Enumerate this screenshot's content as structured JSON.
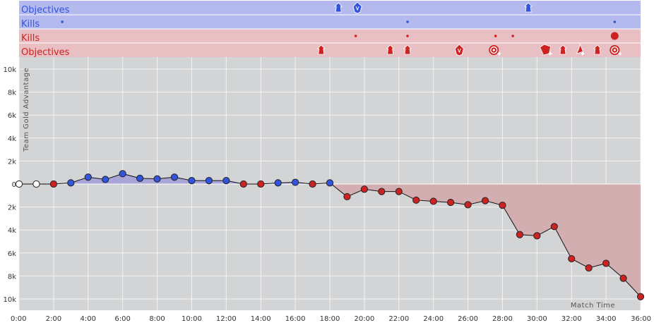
{
  "colors": {
    "blue": "#3355dd",
    "red": "#cc2222",
    "blue_lane": "#b4b9ee",
    "red_lane": "#e8bfc2",
    "plot_bg": "#d3d4d6",
    "grid": "#f2f2f2",
    "blue_fill": "#a7a6d6",
    "red_fill": "#d3aeb0",
    "neutral": "#ffffff"
  },
  "lanes": [
    {
      "label": "Objectives",
      "team": "blue",
      "kind": "objectives"
    },
    {
      "label": "Kills",
      "team": "blue",
      "kind": "kills"
    },
    {
      "label": "Kills",
      "team": "red",
      "kind": "kills"
    },
    {
      "label": "Objectives",
      "team": "red",
      "kind": "objectives"
    }
  ],
  "events": {
    "blue_objectives": [
      {
        "t": 18.5,
        "icon": "tower-icon"
      },
      {
        "t": 19.6,
        "icon": "dragon-icon"
      },
      {
        "t": 29.5,
        "icon": "tower-icon"
      }
    ],
    "blue_kills": [
      {
        "t": 2.5,
        "count": 1
      },
      {
        "t": 22.5,
        "count": 1
      },
      {
        "t": 34.5,
        "count": 1
      }
    ],
    "red_kills": [
      {
        "t": 19.5,
        "count": 1
      },
      {
        "t": 22.5,
        "count": 1
      },
      {
        "t": 27.6,
        "count": 1
      },
      {
        "t": 28.6,
        "count": 1
      },
      {
        "t": 34.5,
        "count": 4
      }
    ],
    "red_objectives": [
      {
        "t": 17.5,
        "icon": "tower-icon"
      },
      {
        "t": 21.5,
        "icon": "tower-icon"
      },
      {
        "t": 22.5,
        "icon": "tower-icon"
      },
      {
        "t": 25.5,
        "icon": "dragon-icon"
      },
      {
        "t": 27.5,
        "icon": "herald-icon"
      },
      {
        "t": 30.5,
        "icon": "baron-icon"
      },
      {
        "t": 31.5,
        "icon": "tower-icon"
      },
      {
        "t": 32.5,
        "icon": "inhibitor-icon"
      },
      {
        "t": 33.5,
        "icon": "tower-icon"
      },
      {
        "t": 34.5,
        "icon": "herald-icon"
      }
    ]
  },
  "chart_data": {
    "type": "line",
    "ylabel": "Team Gold Advantage",
    "xlabel": "Match Time",
    "xlim": [
      0,
      36
    ],
    "ylim": [
      -10000,
      10000
    ],
    "x_ticks": [
      "0:00",
      "2:00",
      "4:00",
      "6:00",
      "8:00",
      "10:00",
      "12:00",
      "14:00",
      "16:00",
      "18:00",
      "20:00",
      "22:00",
      "24:00",
      "26:00",
      "28:00",
      "30:00",
      "32:00",
      "34:00",
      "36:00"
    ],
    "y_ticks": [
      {
        "v": 10000,
        "label": "10k"
      },
      {
        "v": 8000,
        "label": "8k"
      },
      {
        "v": 6000,
        "label": "6k"
      },
      {
        "v": 4000,
        "label": "4k"
      },
      {
        "v": 2000,
        "label": "2k"
      },
      {
        "v": 0,
        "label": "0"
      },
      {
        "v": -2000,
        "label": "2k"
      },
      {
        "v": -4000,
        "label": "4k"
      },
      {
        "v": -6000,
        "label": "6k"
      },
      {
        "v": -8000,
        "label": "8k"
      },
      {
        "v": -10000,
        "label": "10k"
      }
    ],
    "grid": true,
    "series": [
      {
        "x": [
          0,
          1,
          2,
          3,
          4,
          5,
          6,
          7,
          8,
          9,
          10,
          11,
          12,
          13,
          14,
          15,
          16,
          17,
          18,
          19,
          20,
          21,
          22,
          23,
          24,
          25,
          26,
          27,
          28,
          29,
          30,
          31,
          32,
          33,
          34,
          35,
          36
        ],
        "y": [
          0,
          0,
          0,
          100,
          600,
          400,
          900,
          500,
          450,
          600,
          300,
          300,
          300,
          0,
          0,
          100,
          150,
          0,
          100,
          -1100,
          -450,
          -650,
          -650,
          -1400,
          -1500,
          -1600,
          -1800,
          -1450,
          -1850,
          -4400,
          -4500,
          -3700,
          -6500,
          -7300,
          -6900,
          -8200,
          -9800
        ]
      }
    ]
  }
}
